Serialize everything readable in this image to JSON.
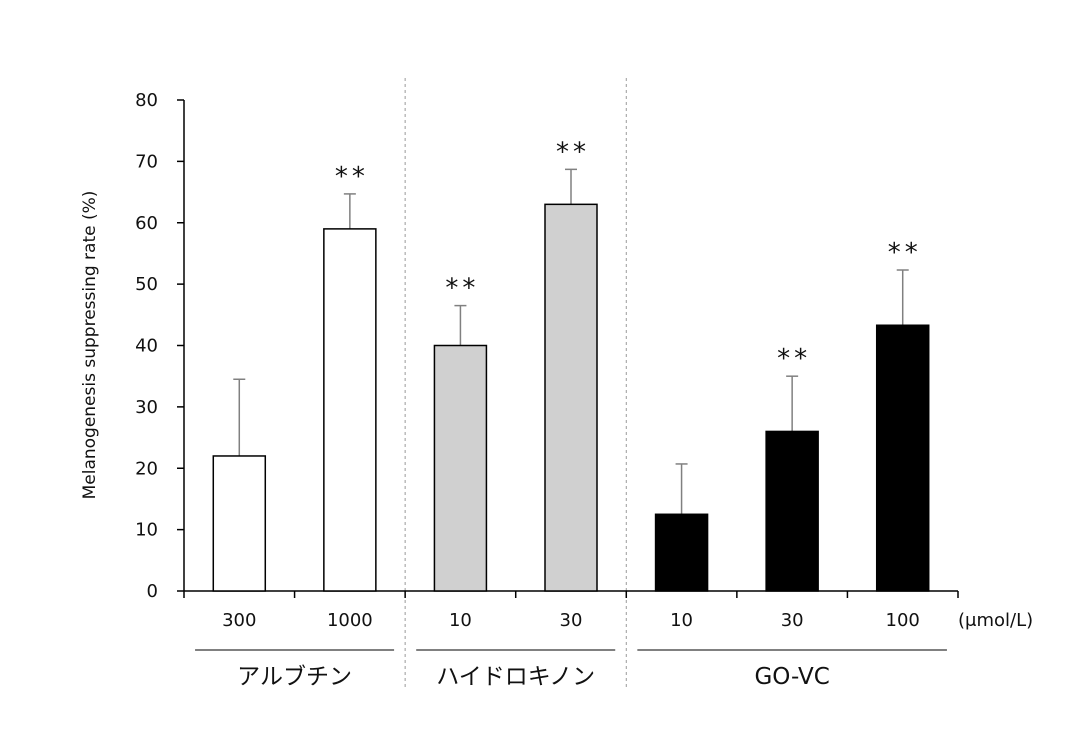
{
  "chart_data": {
    "type": "bar",
    "ylabel": "Melanogenesis suppressing rate (%)",
    "ylim": [
      0,
      80
    ],
    "yticks": [
      "0",
      "10",
      "20",
      "30",
      "40",
      "50",
      "60",
      "70",
      "80"
    ],
    "unit_label": "(μmol/L)",
    "categories": [
      "300",
      "1000",
      "10",
      "30",
      "10",
      "30",
      "100"
    ],
    "values": [
      22,
      59,
      40,
      63,
      12.5,
      26,
      43.3
    ],
    "errors": [
      12.5,
      5.7,
      6.5,
      5.7,
      8.2,
      9.0,
      9.0
    ],
    "significance": [
      "",
      "**",
      "**",
      "**",
      "",
      "**",
      "**"
    ],
    "groups": [
      {
        "name": "アルブチン",
        "members": [
          0,
          1
        ],
        "color": "#ffffff"
      },
      {
        "name": "ハイドロキノン",
        "members": [
          2,
          3
        ],
        "color": "#d0d0d0"
      },
      {
        "name": "GO-VC",
        "members": [
          4,
          5,
          6
        ],
        "color": "#000000"
      }
    ],
    "grid": false,
    "legend": "none"
  }
}
